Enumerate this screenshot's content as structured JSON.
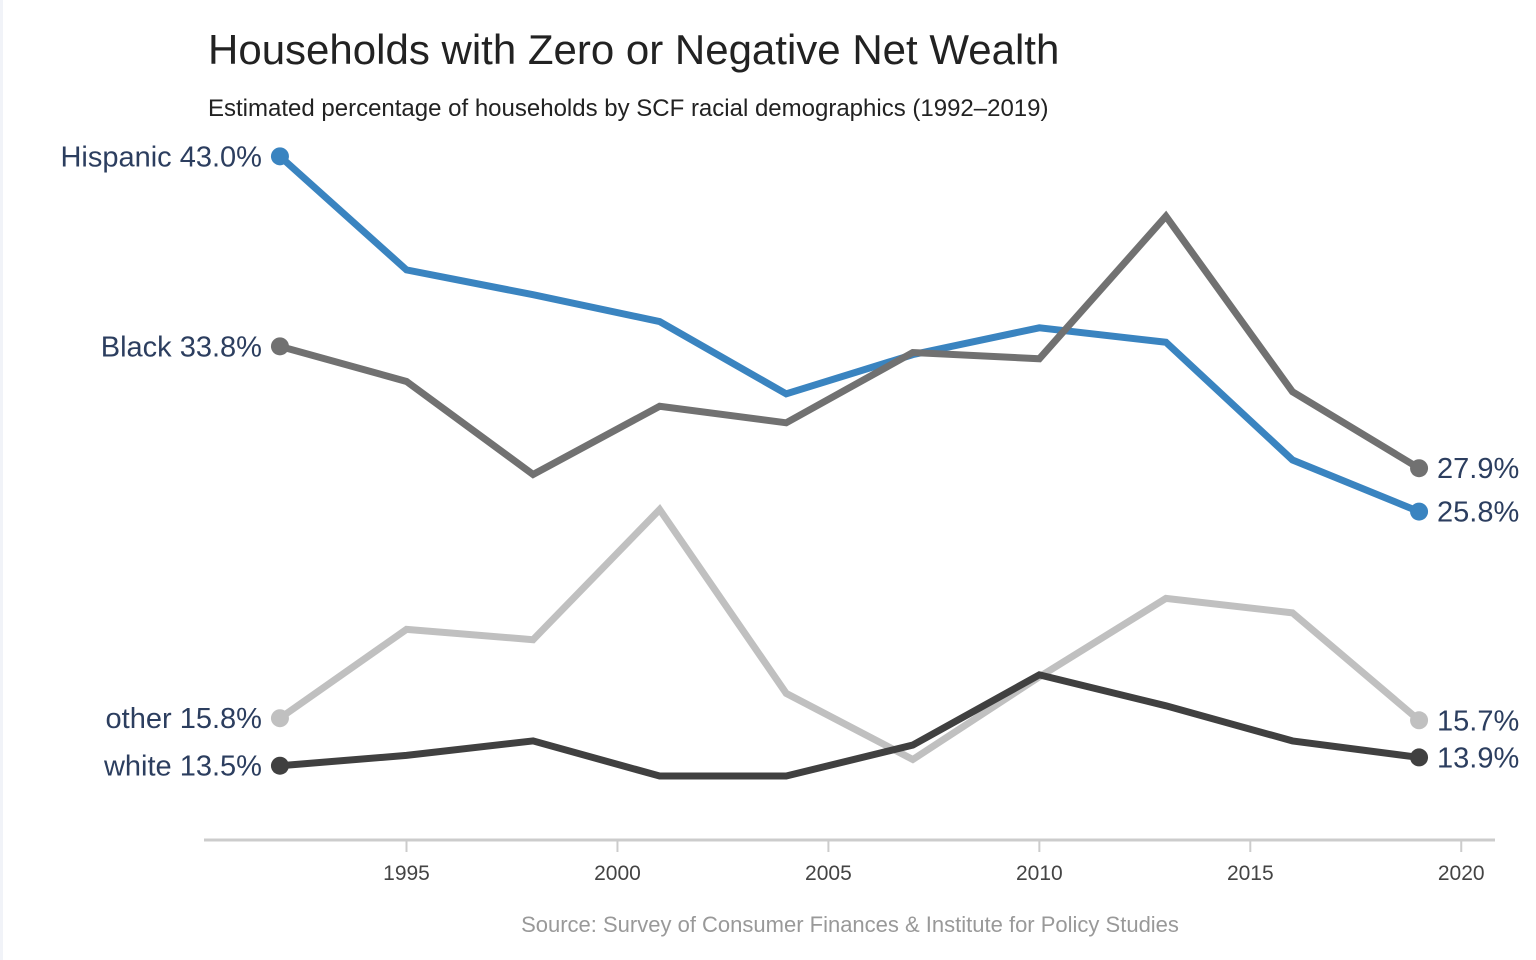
{
  "chart_data": {
    "type": "line",
    "title": "Households with Zero or Negative Net Wealth",
    "subtitle": "Estimated percentage of households by SCF racial demographics (1992–2019)",
    "source": "Source: Survey of Consumer Finances & Institute for Policy Studies",
    "xlabel": "",
    "ylabel": "",
    "x": [
      1992,
      1995,
      1998,
      2001,
      2004,
      2007,
      2010,
      2013,
      2016,
      2019
    ],
    "xlim": [
      1990.2,
      2020.8
    ],
    "ylim": [
      10,
      45
    ],
    "x_ticks": [
      1995,
      2000,
      2005,
      2010,
      2015,
      2020
    ],
    "grid": false,
    "legend": "none",
    "series": [
      {
        "name": "Hispanic",
        "color": "#3a84c0",
        "values": [
          43.0,
          37.5,
          36.3,
          35.0,
          31.5,
          33.4,
          34.7,
          34.0,
          28.3,
          25.8
        ],
        "start_label": "Hispanic 43.0%",
        "end_label": "25.8%"
      },
      {
        "name": "Black",
        "color": "#717171",
        "values": [
          33.8,
          32.1,
          27.6,
          30.9,
          30.1,
          33.5,
          33.2,
          40.1,
          31.6,
          27.9
        ],
        "start_label": "Black 33.8%",
        "end_label": "27.9%"
      },
      {
        "name": "other",
        "color": "#c0c0c0",
        "values": [
          15.8,
          20.1,
          19.6,
          25.9,
          17.0,
          13.8,
          17.8,
          21.6,
          20.9,
          15.7
        ],
        "start_label": "other 15.8%",
        "end_label": "15.7%"
      },
      {
        "name": "white",
        "color": "#404040",
        "values": [
          13.5,
          14.0,
          14.7,
          13.0,
          13.0,
          14.5,
          17.9,
          16.4,
          14.7,
          13.9
        ],
        "start_label": "white 13.5%",
        "end_label": "13.9%"
      }
    ],
    "axis_color": "#cccccc"
  }
}
